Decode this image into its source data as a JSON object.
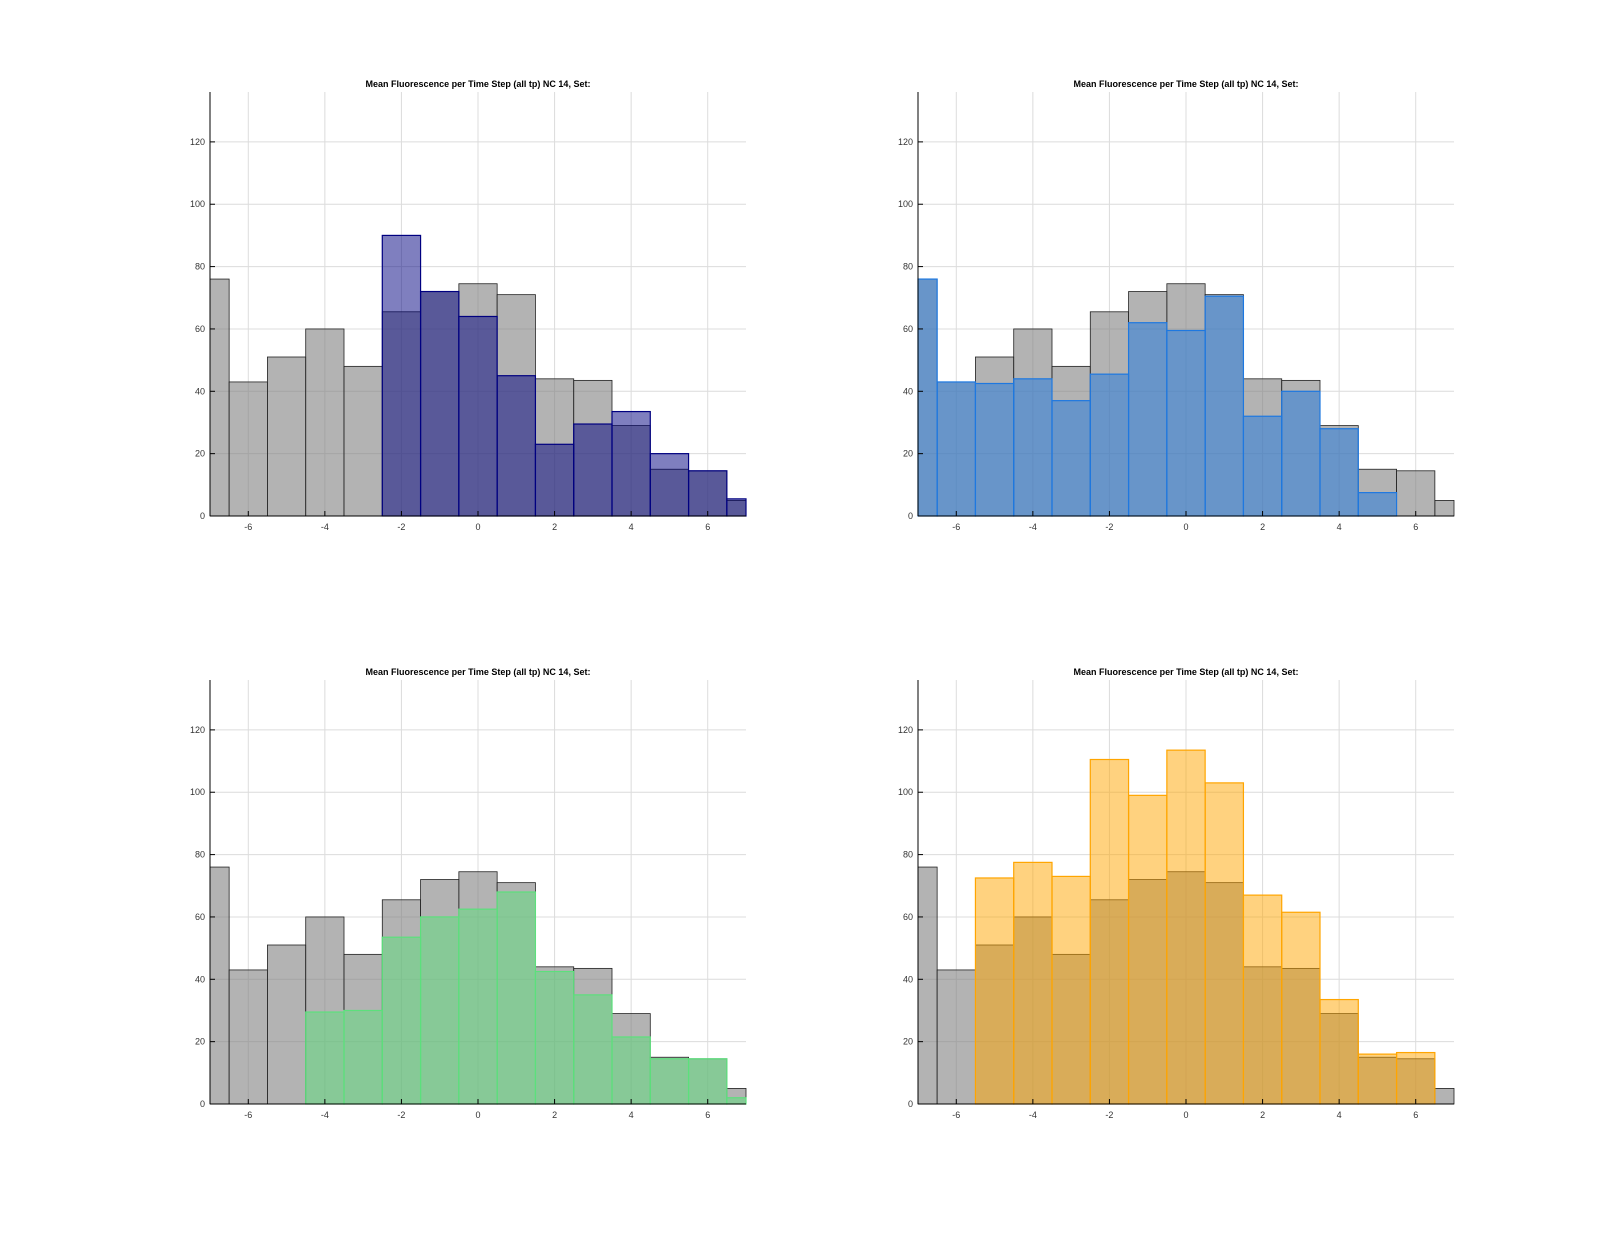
{
  "chart_data": [
    {
      "type": "bar",
      "title": "Mean Fluorescence per Time Step (all tp) NC 14, Set:",
      "xlabel": "",
      "ylabel": "",
      "xlim": [
        -7,
        7
      ],
      "ylim": [
        0,
        136
      ],
      "xticks": [
        -6,
        -4,
        -2,
        0,
        2,
        4,
        6
      ],
      "yticks": [
        0,
        20,
        40,
        60,
        80,
        100,
        120
      ],
      "grid": true,
      "bin_edges": [
        -7,
        -6.5,
        -5.5,
        -4.5,
        -3.5,
        -2.5,
        -1.5,
        -0.5,
        0.5,
        1.5,
        2.5,
        3.5,
        4.5,
        5.5,
        6.5,
        7
      ],
      "series": [
        {
          "values": [
            76,
            43,
            51,
            60,
            48,
            65.5,
            72,
            74.5,
            71,
            44,
            43.5,
            29,
            15,
            14.5,
            5
          ],
          "color": "#808080"
        },
        {
          "values": [
            0,
            0,
            0,
            0,
            0,
            90,
            72,
            64,
            45,
            23,
            29.5,
            33.5,
            20,
            14.5,
            5.5
          ],
          "color": "#000080"
        }
      ]
    },
    {
      "type": "bar",
      "title": "Mean Fluorescence per Time Step (all tp) NC 14, Set:",
      "xlabel": "",
      "ylabel": "",
      "xlim": [
        -7,
        7
      ],
      "ylim": [
        0,
        136
      ],
      "xticks": [
        -6,
        -4,
        -2,
        0,
        2,
        4,
        6
      ],
      "yticks": [
        0,
        20,
        40,
        60,
        80,
        100,
        120
      ],
      "grid": true,
      "bin_edges": [
        -7,
        -6.5,
        -5.5,
        -4.5,
        -3.5,
        -2.5,
        -1.5,
        -0.5,
        0.5,
        1.5,
        2.5,
        3.5,
        4.5,
        5.5,
        6.5,
        7
      ],
      "series": [
        {
          "values": [
            76,
            43,
            51,
            60,
            48,
            65.5,
            72,
            74.5,
            71,
            44,
            43.5,
            29,
            15,
            14.5,
            5
          ],
          "color": "#808080"
        },
        {
          "values": [
            76,
            43,
            42.5,
            44,
            37,
            45.5,
            62,
            59.5,
            70.5,
            32,
            40,
            28,
            7.5,
            0,
            0
          ],
          "color": "#1E78E0"
        }
      ]
    },
    {
      "type": "bar",
      "title": "Mean Fluorescence per Time Step (all tp) NC 14, Set:",
      "xlabel": "",
      "ylabel": "",
      "xlim": [
        -7,
        7
      ],
      "ylim": [
        0,
        136
      ],
      "xticks": [
        -6,
        -4,
        -2,
        0,
        2,
        4,
        6
      ],
      "yticks": [
        0,
        20,
        40,
        60,
        80,
        100,
        120
      ],
      "grid": true,
      "bin_edges": [
        -7,
        -6.5,
        -5.5,
        -4.5,
        -3.5,
        -2.5,
        -1.5,
        -0.5,
        0.5,
        1.5,
        2.5,
        3.5,
        4.5,
        5.5,
        6.5,
        7
      ],
      "series": [
        {
          "values": [
            76,
            43,
            51,
            60,
            48,
            65.5,
            72,
            74.5,
            71,
            44,
            43.5,
            29,
            15,
            14.5,
            5
          ],
          "color": "#808080"
        },
        {
          "values": [
            0,
            0,
            0,
            29.5,
            30,
            53.5,
            60,
            62.5,
            68,
            42.5,
            35,
            21.5,
            14.5,
            14.5,
            2
          ],
          "color": "#5CE07C"
        }
      ]
    },
    {
      "type": "bar",
      "title": "Mean Fluorescence per Time Step (all tp) NC 14, Set:",
      "xlabel": "",
      "ylabel": "",
      "xlim": [
        -7,
        7
      ],
      "ylim": [
        0,
        136
      ],
      "xticks": [
        -6,
        -4,
        -2,
        0,
        2,
        4,
        6
      ],
      "yticks": [
        0,
        20,
        40,
        60,
        80,
        100,
        120
      ],
      "grid": true,
      "bin_edges": [
        -7,
        -6.5,
        -5.5,
        -4.5,
        -3.5,
        -2.5,
        -1.5,
        -0.5,
        0.5,
        1.5,
        2.5,
        3.5,
        4.5,
        5.5,
        6.5,
        7
      ],
      "series": [
        {
          "values": [
            76,
            43,
            51,
            60,
            48,
            65.5,
            72,
            74.5,
            71,
            44,
            43.5,
            29,
            15,
            14.5,
            5
          ],
          "color": "#808080"
        },
        {
          "values": [
            0,
            0,
            72.5,
            77.5,
            73,
            110.5,
            99,
            113.5,
            103,
            67,
            61.5,
            33.5,
            16,
            16.5,
            0
          ],
          "color": "#FFA500"
        }
      ]
    }
  ]
}
